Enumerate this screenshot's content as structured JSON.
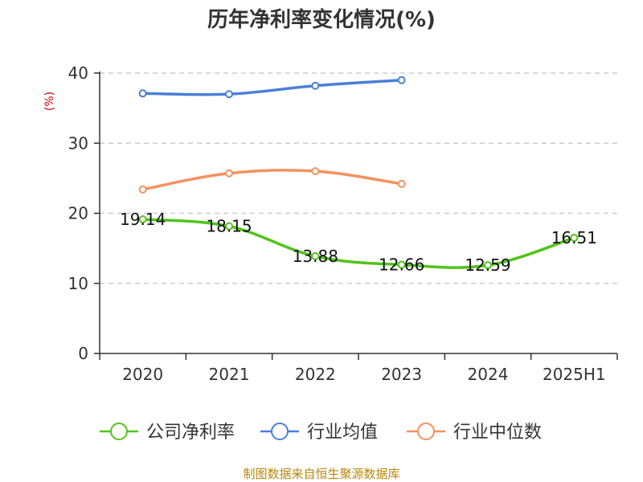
{
  "chart_data": {
    "type": "line",
    "title": "历年净利率变化情况(%)",
    "ylabel": "(%)",
    "categories": [
      "2020",
      "2021",
      "2022",
      "2023",
      "2024",
      "2025H1"
    ],
    "yticks": [
      0,
      10,
      20,
      30,
      40
    ],
    "ylim": [
      0,
      40
    ],
    "grid": true,
    "legend_position": "bottom",
    "series": [
      {
        "name": "公司净利率",
        "color": "#52c41a",
        "values": [
          19.14,
          18.15,
          13.88,
          12.66,
          12.59,
          16.51
        ],
        "labels": [
          "19.14",
          "18.15",
          "13.88",
          "12.66",
          "12.59",
          "16.51"
        ]
      },
      {
        "name": "行业均值",
        "color": "#4a7fd6",
        "values": [
          37.1,
          37.0,
          38.2,
          39.0,
          null,
          null
        ]
      },
      {
        "name": "行业中位数",
        "color": "#f4915e",
        "values": [
          23.4,
          25.7,
          26.0,
          24.2,
          null,
          null
        ]
      }
    ]
  },
  "source": "制图数据来自恒生聚源数据库"
}
